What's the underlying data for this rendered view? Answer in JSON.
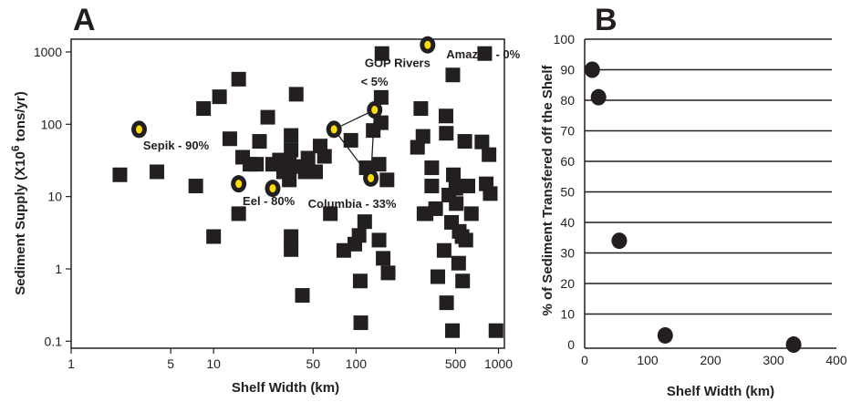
{
  "chart_data": [
    {
      "panel_label": "A",
      "type": "scatter",
      "xlabel": "Shelf Width (km)",
      "ylabel": "Sediment Supply (X10",
      "ylabel_superscript": "6",
      "ylabel_suffix": " tons/yr)",
      "x_scale": "log",
      "y_scale": "log",
      "xlim": [
        1,
        1100
      ],
      "ylim": [
        0.08,
        1500
      ],
      "x_ticks": [
        1,
        5,
        10,
        50,
        100,
        500,
        1000
      ],
      "x_tick_labels": [
        "1",
        "5",
        "10",
        "50",
        "100",
        "500",
        "1000"
      ],
      "y_ticks": [
        0.1,
        1,
        10,
        100,
        1000
      ],
      "y_tick_labels": [
        "0.1",
        "1",
        "10",
        "100",
        "1000"
      ],
      "grid": false,
      "series": [
        {
          "marker": "square",
          "color": "#231f20",
          "points": [
            [
              2.2,
              20
            ],
            [
              4,
              22
            ],
            [
              7.5,
              14
            ],
            [
              8.5,
              165
            ],
            [
              10,
              2.8
            ],
            [
              11,
              240
            ],
            [
              13,
              63
            ],
            [
              15,
              5.8
            ],
            [
              15,
              420
            ],
            [
              16,
              35
            ],
            [
              18,
              28
            ],
            [
              20,
              28
            ],
            [
              21,
              58
            ],
            [
              24,
              125
            ],
            [
              26,
              28
            ],
            [
              29,
              32
            ],
            [
              31,
              22
            ],
            [
              34,
              17
            ],
            [
              34,
              28
            ],
            [
              35,
              44
            ],
            [
              35,
              70
            ],
            [
              35,
              2.8
            ],
            [
              35,
              1.85
            ],
            [
              38,
              260
            ],
            [
              39,
              26
            ],
            [
              42,
              0.43
            ],
            [
              44,
              22
            ],
            [
              46,
              34
            ],
            [
              52,
              22
            ],
            [
              56,
              50
            ],
            [
              60,
              36
            ],
            [
              66,
              5.8
            ],
            [
              82,
              1.8
            ],
            [
              92,
              60
            ],
            [
              98,
              2.2
            ],
            [
              105,
              2.9
            ],
            [
              107,
              0.68
            ],
            [
              108,
              0.18
            ],
            [
              115,
              4.5
            ],
            [
              118,
              25
            ],
            [
              132,
              82
            ],
            [
              145,
              28
            ],
            [
              145,
              2.5
            ],
            [
              150,
              235
            ],
            [
              150,
              105
            ],
            [
              152,
              950
            ],
            [
              155,
              1.4
            ],
            [
              165,
              17
            ],
            [
              168,
              0.88
            ],
            [
              270,
              48
            ],
            [
              285,
              165
            ],
            [
              295,
              68
            ],
            [
              300,
              5.8
            ],
            [
              310,
              5.8
            ],
            [
              340,
              25
            ],
            [
              340,
              14
            ],
            [
              362,
              6.8
            ],
            [
              375,
              0.78
            ],
            [
              415,
              1.8
            ],
            [
              428,
              130
            ],
            [
              430,
              75
            ],
            [
              432,
              0.34
            ],
            [
              448,
              10.5
            ],
            [
              468,
              4.4
            ],
            [
              475,
              0.14
            ],
            [
              478,
              480
            ],
            [
              482,
              20
            ],
            [
              502,
              13
            ],
            [
              505,
              8
            ],
            [
              525,
              1.2
            ],
            [
              530,
              3.3
            ],
            [
              555,
              2.8
            ],
            [
              560,
              0.68
            ],
            [
              580,
              58
            ],
            [
              590,
              2.5
            ],
            [
              610,
              14
            ],
            [
              645,
              5.8
            ],
            [
              765,
              57
            ],
            [
              800,
              950
            ],
            [
              820,
              15
            ],
            [
              858,
              38
            ],
            [
              875,
              11
            ],
            [
              960,
              0.14
            ]
          ]
        },
        {
          "marker": "ringed-dot",
          "color": "#ffdd00",
          "points": [
            [
              3,
              85
            ],
            [
              15,
              15
            ],
            [
              26,
              13
            ],
            [
              70,
              85
            ],
            [
              127,
              18
            ],
            [
              135,
              158
            ],
            [
              318,
              1250
            ]
          ]
        }
      ],
      "connector_lines": [
        [
          [
            70,
            85
          ],
          [
            127,
            18
          ]
        ],
        [
          [
            127,
            18
          ],
          [
            135,
            158
          ]
        ],
        [
          [
            70,
            85
          ],
          [
            135,
            158
          ]
        ]
      ],
      "annotations": [
        {
          "text": "Sepik - 90%",
          "at": [
            3.2,
            45
          ]
        },
        {
          "text": "Eel - 80%",
          "at": [
            16,
            7.6
          ]
        },
        {
          "text": "Columbia - 33%",
          "at": [
            46,
            7.0
          ]
        },
        {
          "text": "GOP Rivers",
          "at": [
            115,
            620
          ]
        },
        {
          "text": "< 5%",
          "at": [
            108,
            340
          ]
        },
        {
          "text": "Amazon - 0%",
          "at": [
            430,
            810
          ]
        }
      ]
    },
    {
      "panel_label": "B",
      "type": "scatter",
      "xlabel": "Shelf Width (km)",
      "ylabel": "% of Sediment Transfered off the Shelf",
      "xlim": [
        0,
        400
      ],
      "ylim": [
        0,
        100
      ],
      "x_ticks": [
        0,
        100,
        200,
        300,
        400
      ],
      "y_ticks": [
        0,
        10,
        20,
        30,
        40,
        50,
        60,
        70,
        80,
        90,
        100
      ],
      "grid": "horizontal",
      "series": [
        {
          "marker": "circle",
          "color": "#231f20",
          "points": [
            [
              12,
              90
            ],
            [
              22,
              81
            ],
            [
              55,
              34
            ],
            [
              128,
              3
            ],
            [
              332,
              0
            ]
          ]
        }
      ]
    }
  ]
}
